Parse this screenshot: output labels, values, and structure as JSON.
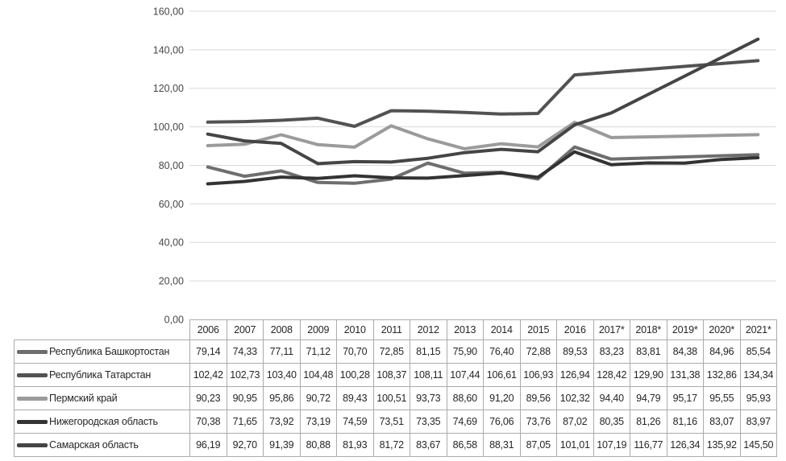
{
  "chart_data": {
    "type": "line",
    "title": "",
    "xlabel": "",
    "ylabel": "",
    "ylim": [
      0,
      160
    ],
    "ytick_step": 20,
    "y_tick_labels": [
      "0,00",
      "20,00",
      "40,00",
      "60,00",
      "80,00",
      "100,00",
      "120,00",
      "140,00",
      "160,00"
    ],
    "grid": "horizontal",
    "legend_position": "table-left",
    "categories": [
      "2006",
      "2007",
      "2008",
      "2009",
      "2010",
      "2011",
      "2012",
      "2013",
      "2014",
      "2015",
      "2016",
      "2017*",
      "2018*",
      "2019*",
      "2020*",
      "2021*"
    ],
    "series": [
      {
        "name": "Республика Башкортостан",
        "color": "#6e6e6e",
        "values": [
          79.14,
          74.33,
          77.11,
          71.12,
          70.7,
          72.85,
          81.15,
          75.9,
          76.4,
          72.88,
          89.53,
          83.23,
          83.81,
          84.38,
          84.96,
          85.54
        ],
        "values_text": [
          "79,14",
          "74,33",
          "77,11",
          "71,12",
          "70,70",
          "72,85",
          "81,15",
          "75,90",
          "76,40",
          "72,88",
          "89,53",
          "83,23",
          "83,81",
          "84,38",
          "84,96",
          "85,54"
        ]
      },
      {
        "name": "Республика Татарстан",
        "color": "#525252",
        "values": [
          102.42,
          102.73,
          103.4,
          104.48,
          100.28,
          108.37,
          108.11,
          107.44,
          106.61,
          106.93,
          126.94,
          128.42,
          129.9,
          131.38,
          132.86,
          134.34
        ],
        "values_text": [
          "102,42",
          "102,73",
          "103,40",
          "104,48",
          "100,28",
          "108,37",
          "108,11",
          "107,44",
          "106,61",
          "106,93",
          "126,94",
          "128,42",
          "129,90",
          "131,38",
          "132,86",
          "134,34"
        ]
      },
      {
        "name": "Пермский край",
        "color": "#9b9b9b",
        "values": [
          90.23,
          90.95,
          95.86,
          90.72,
          89.43,
          100.51,
          93.73,
          88.6,
          91.2,
          89.56,
          102.32,
          94.4,
          94.79,
          95.17,
          95.55,
          95.93
        ],
        "values_text": [
          "90,23",
          "90,95",
          "95,86",
          "90,72",
          "89,43",
          "100,51",
          "93,73",
          "88,60",
          "91,20",
          "89,56",
          "102,32",
          "94,40",
          "94,79",
          "95,17",
          "95,55",
          "95,93"
        ]
      },
      {
        "name": "Нижегородская область",
        "color": "#333333",
        "values": [
          70.38,
          71.65,
          73.92,
          73.19,
          74.59,
          73.51,
          73.35,
          74.69,
          76.06,
          73.76,
          87.02,
          80.35,
          81.26,
          81.16,
          83.07,
          83.97
        ],
        "values_text": [
          "70,38",
          "71,65",
          "73,92",
          "73,19",
          "74,59",
          "73,51",
          "73,35",
          "74,69",
          "76,06",
          "73,76",
          "87,02",
          "80,35",
          "81,26",
          "81,16",
          "83,07",
          "83,97"
        ]
      },
      {
        "name": "Самарская область",
        "color": "#454545",
        "values": [
          96.19,
          92.7,
          91.39,
          80.88,
          81.93,
          81.72,
          83.67,
          86.58,
          88.31,
          87.05,
          101.01,
          107.19,
          116.77,
          126.34,
          135.92,
          145.5
        ],
        "values_text": [
          "96,19",
          "92,70",
          "91,39",
          "80,88",
          "81,93",
          "81,72",
          "83,67",
          "86,58",
          "88,31",
          "87,05",
          "101,01",
          "107,19",
          "116,77",
          "126,34",
          "135,92",
          "145,50"
        ]
      }
    ]
  }
}
